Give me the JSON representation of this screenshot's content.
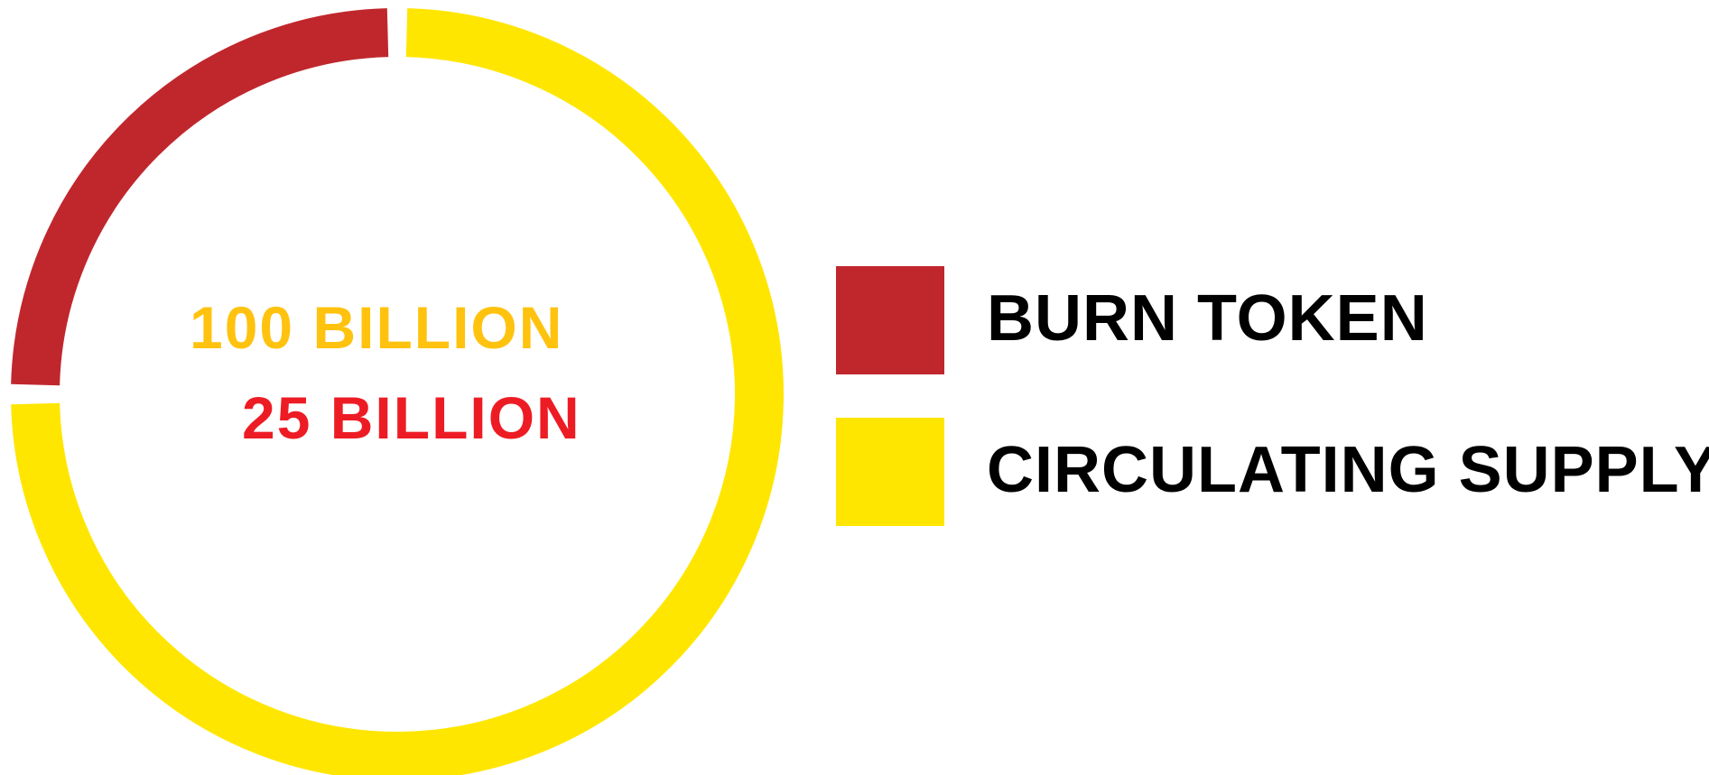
{
  "chart_data": {
    "type": "pie",
    "style": "donut",
    "title": "",
    "center_labels": {
      "total": "100 BILLION",
      "burn": "25 BILLION"
    },
    "categories": [
      "BURN TOKEN",
      "CIRCULATING SUPPLY"
    ],
    "values": [
      25,
      75
    ],
    "unit": "BILLION",
    "colors": [
      "#c0272d",
      "#ffe600"
    ],
    "legend": {
      "placement": "right",
      "entries": [
        "BURN TOKEN",
        "CIRCULATING SUPPLY"
      ]
    },
    "grid": false
  },
  "colors": {
    "total_text": "#ffc20e",
    "burn_text": "#ed1c24",
    "legend_text": "#000000",
    "background": "#ffffff"
  }
}
